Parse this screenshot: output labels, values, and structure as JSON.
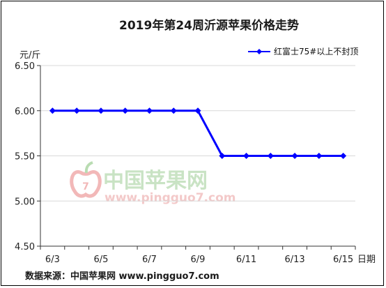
{
  "chart_data": {
    "type": "line",
    "title": "2019年第24周沂源苹果价格走势",
    "ylabel": "元/斤",
    "xlabel": "日期",
    "ylim": [
      4.5,
      6.5
    ],
    "yticks": [
      "6.50",
      "6.00",
      "5.50",
      "5.00",
      "4.50"
    ],
    "ytick_values": [
      6.5,
      6.0,
      5.5,
      5.0,
      4.5
    ],
    "x": [
      "6/3",
      "6/4",
      "6/5",
      "6/6",
      "6/7",
      "6/8",
      "6/9",
      "6/10",
      "6/11",
      "6/12",
      "6/13",
      "6/14",
      "6/15"
    ],
    "xtick_labels": [
      "6/3",
      "6/5",
      "6/7",
      "6/9",
      "6/11",
      "6/13",
      "6/15"
    ],
    "series": [
      {
        "name": "红富士75#以上不封顶",
        "color": "#0000ff",
        "marker": "diamond",
        "values": [
          6.0,
          6.0,
          6.0,
          6.0,
          6.0,
          6.0,
          6.0,
          5.5,
          5.5,
          5.5,
          5.5,
          5.5,
          5.5
        ]
      }
    ],
    "grid": "horizontal",
    "legend_position": "top-right"
  },
  "watermark": {
    "text": "中国苹果网",
    "url": "www.pingguo7.com",
    "icon": "apple-logo-icon"
  },
  "footer": {
    "source": "数据来源：中国苹果网 www.pingguo7.com"
  }
}
